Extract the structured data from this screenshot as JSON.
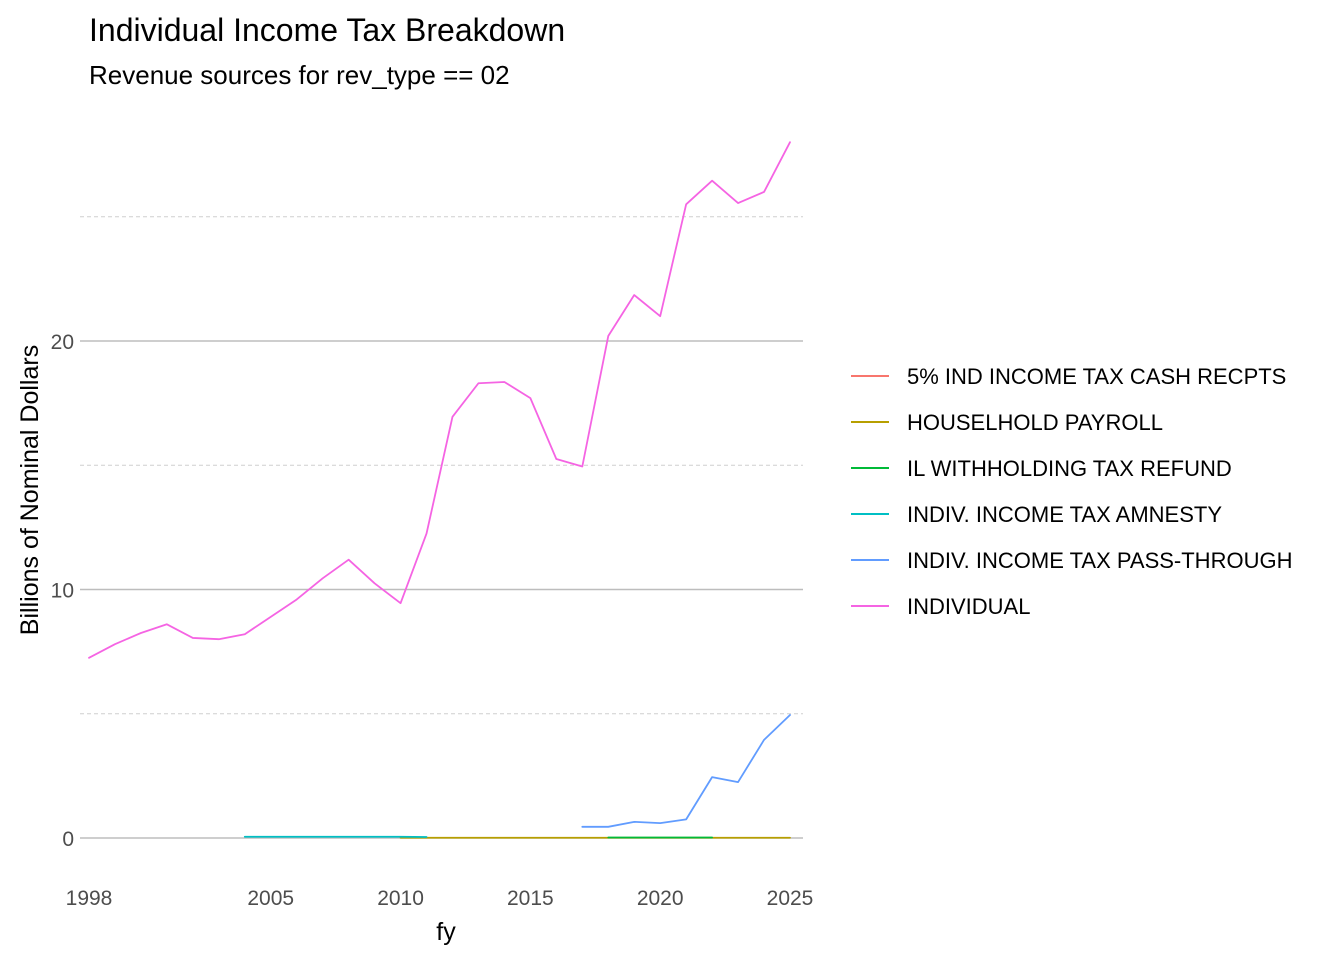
{
  "chart_data": {
    "type": "line",
    "title": "Individual Income Tax  Breakdown",
    "subtitle": "Revenue sources for rev_type == 02",
    "xlabel": "fy",
    "ylabel": "Billions of Nominal Dollars",
    "xlim": [
      1998,
      2025
    ],
    "ylim": [
      -1.3,
      28.5
    ],
    "x_ticks": [
      1998,
      2005,
      2010,
      2015,
      2020,
      2025
    ],
    "y_ticks": [
      0,
      10,
      20
    ],
    "y_minor_ticks": [
      5,
      15,
      25
    ],
    "grid": true,
    "legend_position": "right",
    "series": [
      {
        "name": "5% IND INCOME TAX CASH RECPTS",
        "color": "#F8766D",
        "x": [],
        "y": []
      },
      {
        "name": "HOUSELHOLD PAYROLL",
        "color": "#B79F00",
        "x": [
          2010,
          2011,
          2012,
          2013,
          2014,
          2015,
          2016,
          2017,
          2018,
          2019,
          2020,
          2021,
          2022,
          2023,
          2024,
          2025
        ],
        "y": [
          0.01,
          0.01,
          0.01,
          0.01,
          0.01,
          0.01,
          0.01,
          0.01,
          0.01,
          0.01,
          0.01,
          0.01,
          0.01,
          0.01,
          0.01,
          0.01
        ]
      },
      {
        "name": "IL WITHHOLDING TAX REFUND",
        "color": "#00BA38",
        "x": [
          2018,
          2019,
          2020,
          2021,
          2022
        ],
        "y": [
          0.02,
          0.02,
          0.02,
          0.02,
          0.02
        ]
      },
      {
        "name": "INDIV. INCOME TAX AMNESTY",
        "color": "#00BFC4",
        "x": [
          2004,
          2005,
          2006,
          2007,
          2008,
          2009,
          2010,
          2011
        ],
        "y": [
          0.05,
          0.05,
          0.05,
          0.05,
          0.05,
          0.05,
          0.05,
          0.04
        ]
      },
      {
        "name": "INDIV. INCOME TAX PASS-THROUGH",
        "color": "#619CFF",
        "x": [
          2017,
          2018,
          2019,
          2020,
          2021,
          2022,
          2023,
          2024,
          2025
        ],
        "y": [
          0.45,
          0.45,
          0.65,
          0.6,
          0.75,
          2.45,
          2.25,
          3.95,
          4.95
        ]
      },
      {
        "name": "INDIVIDUAL",
        "color": "#F564E3",
        "x": [
          1998,
          1999,
          2000,
          2001,
          2002,
          2003,
          2004,
          2005,
          2006,
          2007,
          2008,
          2009,
          2010,
          2011,
          2012,
          2013,
          2014,
          2015,
          2016,
          2017,
          2018,
          2019,
          2020,
          2021,
          2022,
          2023,
          2024,
          2025
        ],
        "y": [
          7.25,
          7.8,
          8.25,
          8.6,
          8.05,
          8.0,
          8.2,
          8.9,
          9.6,
          10.45,
          11.2,
          10.25,
          9.45,
          12.25,
          16.95,
          18.3,
          18.35,
          17.7,
          15.25,
          14.95,
          20.2,
          21.85,
          21.0,
          25.5,
          26.45,
          25.55,
          26.0,
          28.0
        ]
      }
    ]
  }
}
